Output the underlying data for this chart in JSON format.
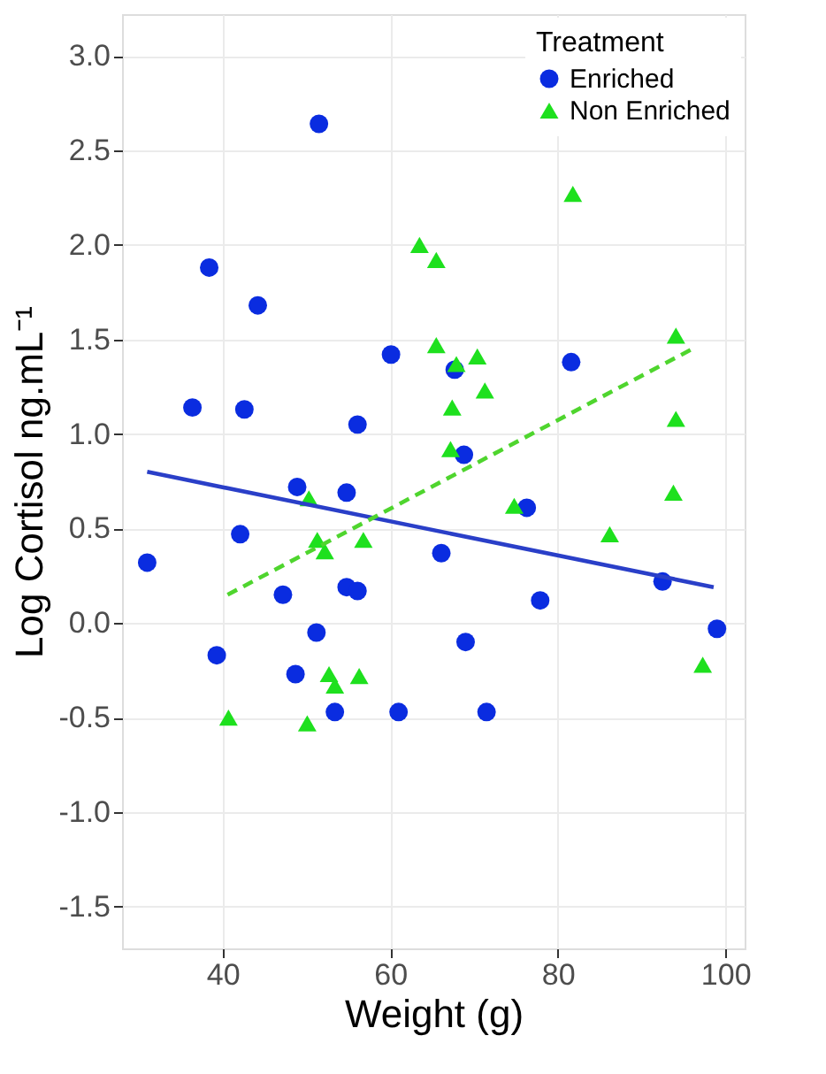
{
  "chart_data": {
    "type": "scatter",
    "xlabel": "Weight (g)",
    "ylabel": "Log Cortisol ng.mL⁻¹",
    "legend_title": "Treatment",
    "xlim": [
      28,
      102.3
    ],
    "ylim": [
      -1.72,
      3.22
    ],
    "xticks": [
      40,
      60,
      80,
      100
    ],
    "yticks": [
      {
        "value": -1.5,
        "label": "-1.5"
      },
      {
        "value": -1,
        "label": "-1.0"
      },
      {
        "value": -0.5,
        "label": "-0.5"
      },
      {
        "value": 0,
        "label": "0.0"
      },
      {
        "value": 0.5,
        "label": "0.5"
      },
      {
        "value": 1,
        "label": "1.0"
      },
      {
        "value": 1.5,
        "label": "1.5"
      },
      {
        "value": 2,
        "label": "2.0"
      },
      {
        "value": 2.5,
        "label": "2.5"
      },
      {
        "value": 3,
        "label": "3.0"
      }
    ],
    "grid": true,
    "legend": "top right",
    "series": [
      {
        "name": "Enriched",
        "marker": "circle",
        "color": "#0a2ce0",
        "x": [
          51.5,
          38.4,
          44.2,
          60.1,
          36.4,
          42.6,
          56.1,
          48.9,
          54.8,
          42.1,
          31.0,
          47.2,
          54.8,
          56.1,
          51.2,
          39.3,
          48.7,
          53.4,
          61.0,
          66.1,
          76.3,
          77.9,
          69.0,
          71.5,
          92.5,
          99.0,
          81.6,
          67.7,
          68.8
        ],
        "values": [
          2.64,
          1.88,
          1.68,
          1.42,
          1.14,
          1.13,
          1.05,
          0.72,
          0.69,
          0.47,
          0.32,
          0.15,
          0.19,
          0.17,
          -0.05,
          -0.17,
          -0.27,
          -0.47,
          -0.47,
          0.37,
          0.61,
          0.12,
          -0.1,
          -0.47,
          0.22,
          -0.03,
          1.38,
          1.34,
          0.89
        ]
      },
      {
        "name": "Non Enriched",
        "marker": "triangle",
        "color": "#1ee01e",
        "x": [
          63.5,
          65.5,
          65.5,
          81.8,
          67.9,
          70.4,
          71.3,
          67.4,
          67.2,
          94.1,
          94.1,
          74.8,
          93.8,
          86.2,
          97.3,
          50.3,
          51.3,
          52.2,
          56.8,
          40.7,
          50.1,
          52.7,
          53.4,
          56.3
        ],
        "values": [
          2.0,
          1.92,
          1.47,
          2.27,
          1.37,
          1.41,
          1.23,
          1.14,
          0.92,
          1.52,
          1.08,
          0.62,
          0.69,
          0.47,
          -0.22,
          0.66,
          0.44,
          0.38,
          0.44,
          -0.5,
          -0.53,
          -0.27,
          -0.33,
          -0.28
        ]
      },
      {
        "type": "line",
        "line_style": "solid",
        "color": "#2a3fc8",
        "x": [
          31.0,
          98.6
        ],
        "values": [
          0.8,
          0.19
        ]
      },
      {
        "type": "line",
        "line_style": "dashed",
        "color": "#4fd52e",
        "x": [
          40.6,
          96.5
        ],
        "values": [
          0.15,
          1.46
        ]
      }
    ]
  }
}
